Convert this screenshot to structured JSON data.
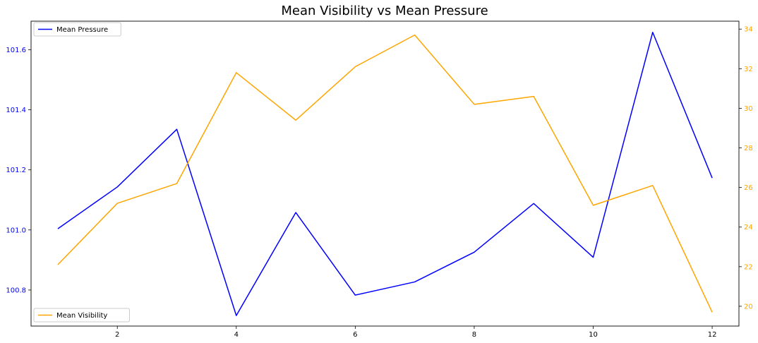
{
  "chart_data": {
    "type": "line",
    "title": "Mean Visibility vs Mean Pressure",
    "x": [
      1,
      2,
      3,
      4,
      5,
      6,
      7,
      8,
      9,
      10,
      11,
      12
    ],
    "x_ticks": [
      2,
      4,
      6,
      8,
      10,
      12
    ],
    "xlim": [
      0.55,
      12.45
    ],
    "series": [
      {
        "name": "Mean Pressure",
        "axis": "left",
        "color": "#0000ff",
        "values": [
          101.004,
          101.143,
          101.335,
          100.715,
          101.058,
          100.783,
          100.827,
          100.926,
          101.088,
          100.909,
          101.658,
          101.173
        ]
      },
      {
        "name": "Mean Visibility",
        "axis": "right",
        "color": "#ffa500",
        "values": [
          22.1,
          25.2,
          26.2,
          31.8,
          29.4,
          32.1,
          33.7,
          30.2,
          30.6,
          25.1,
          26.1,
          19.7
        ]
      }
    ],
    "left_axis": {
      "ylim": [
        100.68,
        101.695
      ],
      "ticks": [
        100.8,
        101.0,
        101.2,
        101.4,
        101.6
      ],
      "tick_labels": [
        "100.8",
        "101.0",
        "101.2",
        "101.4",
        "101.6"
      ],
      "color": "#0000ff"
    },
    "right_axis": {
      "ylim": [
        19.0,
        34.4
      ],
      "ticks": [
        20,
        22,
        24,
        26,
        28,
        30,
        32,
        34
      ],
      "tick_labels": [
        "20",
        "22",
        "24",
        "26",
        "28",
        "30",
        "32",
        "34"
      ],
      "color": "#ffa500"
    },
    "legends": [
      {
        "label": "Mean Pressure",
        "placement": "upper-left"
      },
      {
        "label": "Mean Visibility",
        "placement": "lower-left"
      }
    ],
    "grid": false
  }
}
